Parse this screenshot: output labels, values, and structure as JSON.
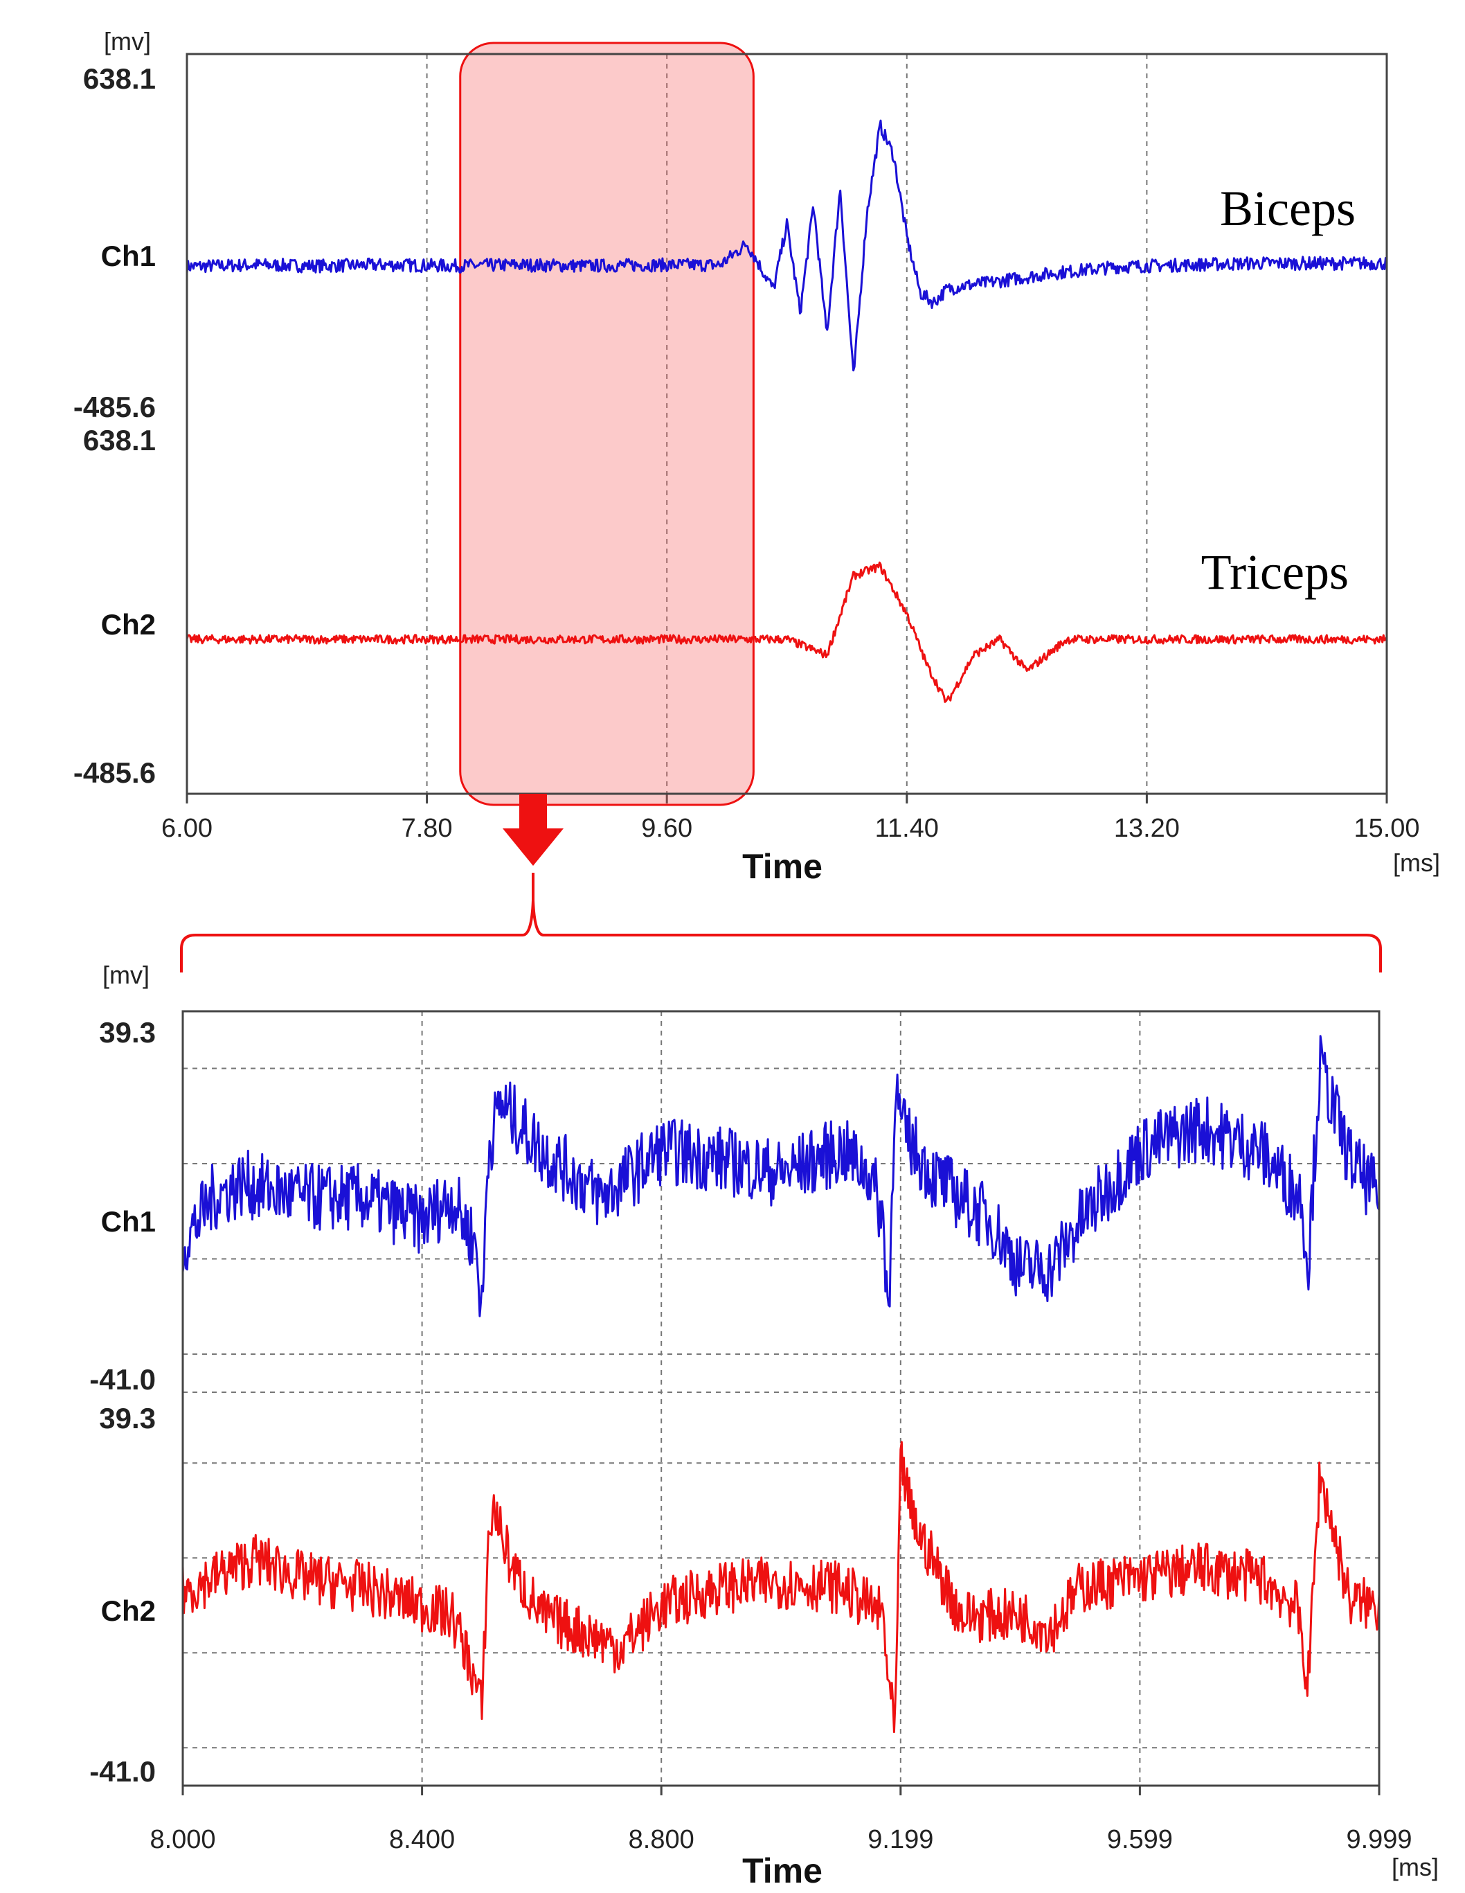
{
  "chart_data": [
    {
      "type": "line",
      "xlabel": "Time",
      "x_unit": "[ms]",
      "y_unit": "[mv]",
      "xlim": [
        6.0,
        15.0
      ],
      "x_ticks": [
        "6.00",
        "7.80",
        "9.60",
        "11.40",
        "13.20",
        "15.00"
      ],
      "channels": [
        {
          "label": "Ch1",
          "name": "Biceps",
          "color": "#1a10d6",
          "ymax_label": "638.1",
          "ymin_label": "-485.6",
          "ylim": [
            -485.6,
            638.1
          ],
          "x": [
            6.0,
            6.5,
            7.0,
            7.5,
            8.0,
            8.5,
            9.0,
            9.5,
            10.0,
            10.2,
            10.4,
            10.5,
            10.6,
            10.7,
            10.8,
            10.9,
            11.0,
            11.1,
            11.2,
            11.3,
            11.4,
            11.5,
            11.6,
            11.7,
            11.8,
            12.0,
            12.5,
            13.0,
            13.5,
            14.0,
            14.5,
            15.0
          ],
          "y": [
            -10,
            -5,
            -8,
            -5,
            -8,
            -5,
            -8,
            -5,
            -5,
            60,
            -80,
            120,
            -150,
            180,
            -220,
            230,
            -350,
            150,
            420,
            330,
            80,
            -90,
            -120,
            -80,
            -70,
            -60,
            -30,
            -10,
            -5,
            0,
            0,
            0
          ]
        },
        {
          "label": "Ch2",
          "name": "Triceps",
          "color": "#ee1111",
          "ymax_label": "638.1",
          "ymin_label": "-485.6",
          "ylim": [
            -485.6,
            638.1
          ],
          "x": [
            6.0,
            6.5,
            7.0,
            7.5,
            8.0,
            8.5,
            9.0,
            9.5,
            10.0,
            10.5,
            10.8,
            11.0,
            11.2,
            11.4,
            11.55,
            11.7,
            11.9,
            12.1,
            12.3,
            12.6,
            13.0,
            13.5,
            14.0,
            15.0
          ],
          "y": [
            0,
            0,
            0,
            0,
            0,
            0,
            0,
            0,
            0,
            0,
            -50,
            200,
            230,
            80,
            -80,
            -200,
            -50,
            0,
            -100,
            0,
            0,
            0,
            0,
            0
          ]
        }
      ],
      "highlight": {
        "x0": 8.05,
        "x1": 10.25
      }
    },
    {
      "type": "line",
      "xlabel": "Time",
      "x_unit": "[ms]",
      "y_unit": "[mv]",
      "xlim": [
        8.0,
        9.999
      ],
      "x_ticks": [
        "8.000",
        "8.400",
        "8.800",
        "9.199",
        "9.599",
        "9.999"
      ],
      "channels": [
        {
          "label": "Ch1",
          "color": "#1a10d6",
          "ymax_label": "39.3",
          "ymin_label": "-41.0",
          "ylim": [
            -41.0,
            39.3
          ],
          "x": [
            8.0,
            8.05,
            8.1,
            8.2,
            8.3,
            8.4,
            8.45,
            8.49,
            8.5,
            8.51,
            8.53,
            8.6,
            8.7,
            8.8,
            8.9,
            9.0,
            9.1,
            9.15,
            9.17,
            9.18,
            9.19,
            9.2,
            9.25,
            9.3,
            9.35,
            9.4,
            9.45,
            9.5,
            9.6,
            9.7,
            9.8,
            9.87,
            9.88,
            9.9,
            9.95,
            9.999
          ],
          "y": [
            -10,
            0,
            3,
            0,
            0,
            -5,
            0,
            -10,
            -25,
            10,
            20,
            10,
            0,
            10,
            8,
            5,
            10,
            5,
            -5,
            -25,
            25,
            15,
            5,
            0,
            -5,
            -15,
            -15,
            -5,
            10,
            15,
            10,
            0,
            -15,
            28,
            8,
            0
          ]
        },
        {
          "label": "Ch2",
          "color": "#ee1111",
          "ymax_label": "39.3",
          "ymin_label": "-41.0",
          "ylim": [
            -41.0,
            39.3
          ],
          "x": [
            8.0,
            8.05,
            8.12,
            8.2,
            8.3,
            8.4,
            8.45,
            8.48,
            8.5,
            8.51,
            8.52,
            8.55,
            8.6,
            8.7,
            8.73,
            8.8,
            8.9,
            9.0,
            9.1,
            9.17,
            9.18,
            9.19,
            9.2,
            9.22,
            9.3,
            9.4,
            9.45,
            9.5,
            9.6,
            9.7,
            9.8,
            9.86,
            9.87,
            9.88,
            9.9,
            9.95,
            9.999
          ],
          "y": [
            0,
            3,
            7,
            3,
            1,
            -3,
            -5,
            -15,
            -25,
            10,
            18,
            5,
            -5,
            -10,
            -12,
            -3,
            1,
            2,
            1,
            -5,
            -20,
            -30,
            28,
            15,
            -5,
            -5,
            -8,
            1,
            3,
            5,
            3,
            -3,
            -10,
            -20,
            25,
            -2,
            -3
          ]
        }
      ]
    }
  ]
}
